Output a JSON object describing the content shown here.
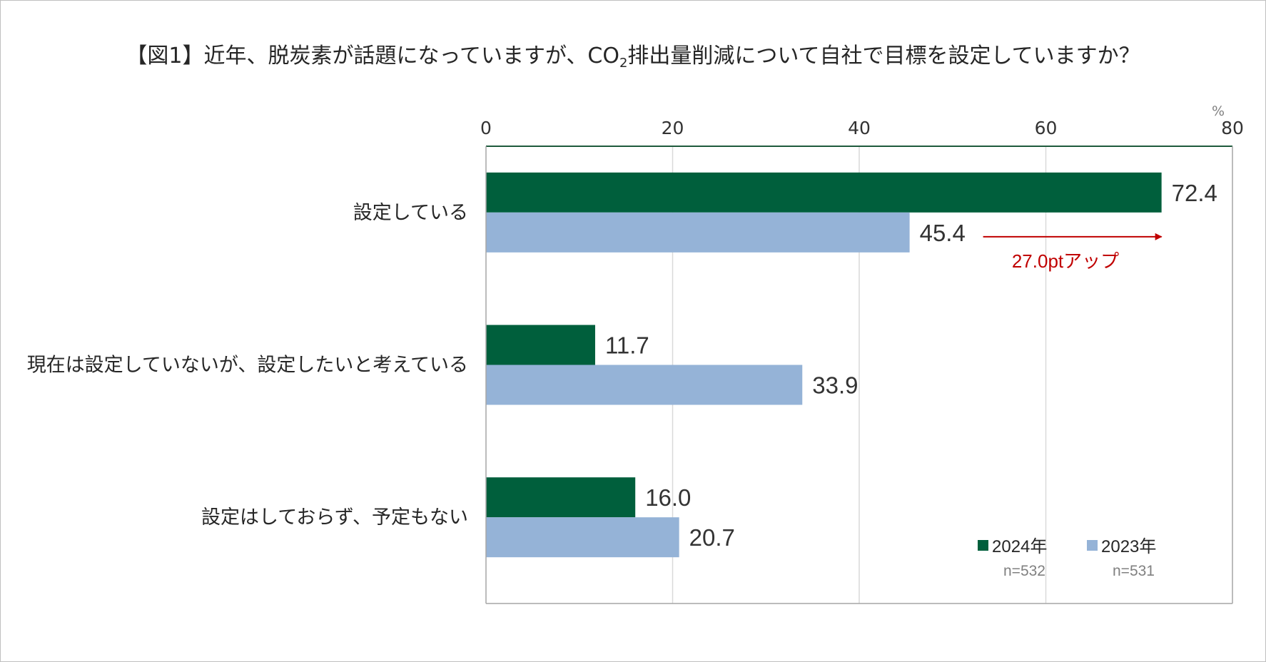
{
  "title": {
    "before_sub": "【図1】近年、脱炭素が話題になっていますが、CO",
    "sub": "2",
    "after_sub": "排出量削減について自社で目標を設定していますか？"
  },
  "chart_data": {
    "type": "bar",
    "orientation": "horizontal",
    "unit": "%",
    "xlim": [
      0,
      80
    ],
    "ticks": [
      "0",
      "20",
      "40",
      "60",
      "80"
    ],
    "categories": [
      "設定している",
      "現在は設定していないが、設定したいと考えている",
      "設定はしておらず、予定もない"
    ],
    "series": [
      {
        "name": "2024年",
        "n": "n=532",
        "color": "#005f3c",
        "values": [
          72.4,
          11.7,
          16.0
        ],
        "labels": [
          "72.4",
          "11.7",
          "16.0"
        ]
      },
      {
        "name": "2023年",
        "n": "n=531",
        "color": "#95b3d7",
        "values": [
          45.4,
          33.9,
          20.7
        ],
        "labels": [
          "45.4",
          "33.9",
          "20.7"
        ]
      }
    ],
    "annotation": {
      "text": "27.0ptアップ",
      "color": "#c00000",
      "from": 45.4,
      "to": 72.4
    },
    "grid": true,
    "legend_position": "bottom-right"
  }
}
